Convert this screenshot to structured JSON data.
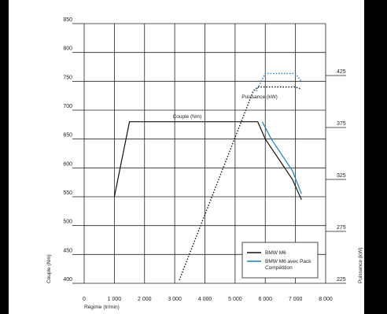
{
  "chart_data": {
    "type": "line",
    "xlabel": "Régime (tr/min)",
    "ylabel_left": "Couple (Nm)",
    "ylabel_right": "Puissance (kW)",
    "xlim": [
      0,
      8000
    ],
    "ylim_left": [
      400,
      850
    ],
    "ylim_right": [
      225,
      475
    ],
    "x_ticks": [
      0,
      1000,
      2000,
      3000,
      4000,
      5000,
      6000,
      7000,
      8000
    ],
    "x_tick_labels": [
      "0",
      "1 000",
      "2 000",
      "3 000",
      "4 000",
      "5 000",
      "6 000",
      "7 000",
      "8 000"
    ],
    "y_left_ticks": [
      400,
      450,
      500,
      550,
      600,
      650,
      700,
      750,
      800,
      850
    ],
    "y_right_ticks": [
      225,
      275,
      325,
      375,
      425
    ],
    "grid": true,
    "legend_position": "bottom-right",
    "annotations": {
      "couple": "Couple (Nm)",
      "puissance": "Puissance (kW)"
    },
    "series": [
      {
        "name": "BMW M6",
        "metric": "couple",
        "axis": "left",
        "color": "#111111",
        "dash": "solid",
        "x": [
          1000,
          1500,
          5750,
          6000,
          6900,
          7200
        ],
        "y": [
          550,
          680,
          680,
          650,
          580,
          545
        ]
      },
      {
        "name": "BMW M6 avec Pack Compétition",
        "metric": "couple",
        "axis": "left",
        "color": "#1f7fc4",
        "dash": "solid",
        "x": [
          5900,
          6200,
          6900,
          7200
        ],
        "y": [
          680,
          650,
          595,
          555
        ]
      },
      {
        "name": "BMW M6",
        "metric": "puissance",
        "axis": "right",
        "color": "#111111",
        "dash": "dotted",
        "x": [
          3150,
          5600,
          5750,
          7000,
          7200
        ],
        "y": [
          228,
          410,
          414,
          414,
          412
        ]
      },
      {
        "name": "BMW M6 avec Pack Compétition",
        "metric": "puissance",
        "axis": "right",
        "color": "#1f7fc4",
        "dash": "dotted",
        "x": [
          5700,
          6000,
          7000,
          7200
        ],
        "y": [
          410,
          427,
          427,
          419
        ]
      }
    ],
    "legend": [
      {
        "label": "BMW M6",
        "color": "#111111"
      },
      {
        "label": "BMW M6 avec Pack\nCompétition",
        "color": "#1f7fc4"
      }
    ]
  }
}
